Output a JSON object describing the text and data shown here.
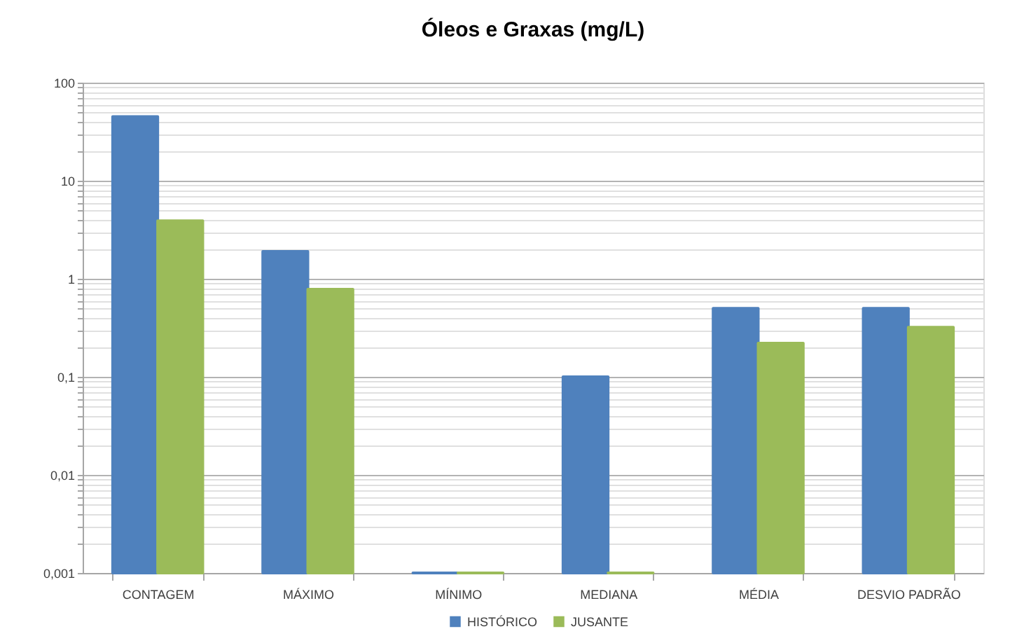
{
  "chart_data": {
    "type": "bar",
    "title": "Óleos e Graxas (mg/L)",
    "categories": [
      "CONTAGEM",
      "MÁXIMO",
      "MÍNIMO",
      "MEDIANA",
      "MÉDIA",
      "DESVIO PADRÃO"
    ],
    "series": [
      {
        "name": "HISTÓRICO",
        "color": "#4f81bd",
        "values": [
          45,
          1.9,
          0.001,
          0.1,
          0.5,
          0.5
        ]
      },
      {
        "name": "JUSANTE",
        "color": "#9bbb59",
        "values": [
          3.9,
          0.78,
          0.001,
          0.001,
          0.22,
          0.32
        ]
      }
    ],
    "log": true,
    "ylim": [
      0.001,
      100
    ],
    "yticks": [
      {
        "value": 0.001,
        "label": "0,001"
      },
      {
        "value": 0.002,
        "label": null
      },
      {
        "value": 0.003,
        "label": null
      },
      {
        "value": 0.004,
        "label": null
      },
      {
        "value": 0.005,
        "label": null
      },
      {
        "value": 0.006,
        "label": null
      },
      {
        "value": 0.007,
        "label": null
      },
      {
        "value": 0.008,
        "label": null
      },
      {
        "value": 0.009,
        "label": null
      },
      {
        "value": 0.01,
        "label": "0,01"
      },
      {
        "value": 0.02,
        "label": null
      },
      {
        "value": 0.03,
        "label": null
      },
      {
        "value": 0.04,
        "label": null
      },
      {
        "value": 0.05,
        "label": null
      },
      {
        "value": 0.06,
        "label": null
      },
      {
        "value": 0.07,
        "label": null
      },
      {
        "value": 0.08,
        "label": null
      },
      {
        "value": 0.09,
        "label": null
      },
      {
        "value": 0.1,
        "label": "0,1"
      },
      {
        "value": 0.2,
        "label": null
      },
      {
        "value": 0.3,
        "label": null
      },
      {
        "value": 0.4,
        "label": null
      },
      {
        "value": 0.5,
        "label": null
      },
      {
        "value": 0.6,
        "label": null
      },
      {
        "value": 0.7,
        "label": null
      },
      {
        "value": 0.8,
        "label": null
      },
      {
        "value": 0.9,
        "label": null
      },
      1,
      {
        "value": 2,
        "label": null
      },
      {
        "value": 3,
        "label": null
      },
      {
        "value": 4,
        "label": null
      },
      {
        "value": 5,
        "label": null
      },
      {
        "value": 6,
        "label": null
      },
      {
        "value": 7,
        "label": null
      },
      {
        "value": 8,
        "label": null
      },
      {
        "value": 9,
        "label": null
      },
      10,
      {
        "value": 20,
        "label": null
      },
      {
        "value": 30,
        "label": null
      },
      {
        "value": 40,
        "label": null
      },
      {
        "value": 50,
        "label": null
      },
      {
        "value": 60,
        "label": null
      },
      {
        "value": 70,
        "label": null
      },
      {
        "value": 80,
        "label": null
      },
      {
        "value": 90,
        "label": null
      },
      100
    ],
    "grid": "y",
    "legend": "bottom"
  }
}
